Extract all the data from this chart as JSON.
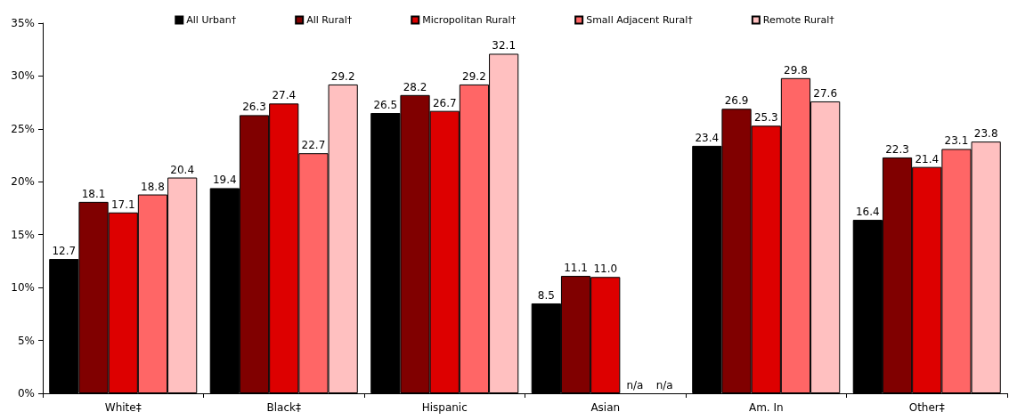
{
  "chart_data": {
    "type": "bar",
    "categories": [
      "White‡",
      "Black‡",
      "Hispanic",
      "Asian",
      "Am. In",
      "Other‡"
    ],
    "series": [
      {
        "name": "All Urban†",
        "color": "#000000",
        "values": [
          12.7,
          19.4,
          26.5,
          8.5,
          23.4,
          16.4
        ],
        "value_labels": [
          "12.7",
          "19.4",
          "26.5",
          "8.5",
          "23.4",
          "16.4"
        ]
      },
      {
        "name": "All Rural†",
        "color": "#800000",
        "values": [
          18.1,
          26.3,
          28.2,
          11.1,
          26.9,
          22.3
        ],
        "value_labels": [
          "18.1",
          "26.3",
          "28.2",
          "11.1",
          "26.9",
          "22.3"
        ]
      },
      {
        "name": "Micropolitan Rural†",
        "color": "#dd0000",
        "values": [
          17.1,
          27.4,
          26.7,
          11.0,
          25.3,
          21.4
        ],
        "value_labels": [
          "17.1",
          "27.4",
          "26.7",
          "11.0",
          "25.3",
          "21.4"
        ]
      },
      {
        "name": "Small Adjacent Rural†",
        "color": "#ff6666",
        "values": [
          18.8,
          22.7,
          29.2,
          null,
          29.8,
          23.1
        ],
        "value_labels": [
          "18.8",
          "22.7",
          "29.2",
          "n/a",
          "29.8",
          "23.1"
        ]
      },
      {
        "name": "Remote Rural†",
        "color": "#ffc0c0",
        "values": [
          20.4,
          29.2,
          32.1,
          null,
          27.6,
          23.8
        ],
        "value_labels": [
          "20.4",
          "29.2",
          "32.1",
          "n/a",
          "27.6",
          "23.8"
        ]
      }
    ],
    "ylim": [
      0,
      35
    ],
    "yticks": [
      {
        "value": 0,
        "label": "0%"
      },
      {
        "value": 5,
        "label": "5%"
      },
      {
        "value": 10,
        "label": "10%"
      },
      {
        "value": 15,
        "label": "15%"
      },
      {
        "value": 20,
        "label": "20%"
      },
      {
        "value": 25,
        "label": "25%"
      },
      {
        "value": 30,
        "label": "30%"
      },
      {
        "value": 35,
        "label": "35%"
      }
    ],
    "legend": "top",
    "grid": false
  }
}
